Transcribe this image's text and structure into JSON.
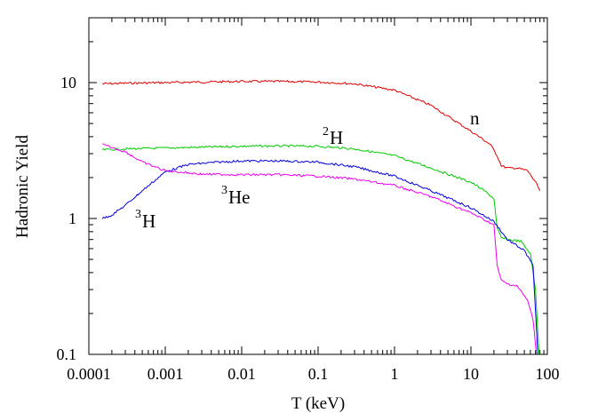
{
  "chart_data": {
    "type": "line",
    "title": "",
    "xlabel": "T (keV)",
    "ylabel": "Hadronic Yield",
    "x_scale": "log",
    "y_scale": "log",
    "xlim": [
      0.0001,
      100
    ],
    "ylim": [
      0.1,
      30
    ],
    "grid": false,
    "legend": "none",
    "x_tick_labels": [
      "0.0001",
      "0.001",
      "0.01",
      "0.1",
      "1",
      "10",
      "100"
    ],
    "y_tick_labels": [
      "0.1",
      "1",
      "10"
    ],
    "series": [
      {
        "name": "n",
        "label_main": "n",
        "label_sup": "",
        "color": "#e00000",
        "points": [
          [
            0.00015,
            9.8
          ],
          [
            0.0003,
            9.9
          ],
          [
            0.001,
            10.0
          ],
          [
            0.003,
            10.1
          ],
          [
            0.01,
            10.2
          ],
          [
            0.03,
            10.2
          ],
          [
            0.1,
            10.1
          ],
          [
            0.3,
            9.8
          ],
          [
            1,
            8.8
          ],
          [
            3,
            6.8
          ],
          [
            7,
            5.0
          ],
          [
            12,
            4.1
          ],
          [
            18,
            3.5
          ],
          [
            22,
            2.9
          ],
          [
            25,
            2.45
          ],
          [
            30,
            2.35
          ],
          [
            40,
            2.35
          ],
          [
            55,
            2.25
          ],
          [
            70,
            1.85
          ],
          [
            80,
            1.6
          ]
        ]
      },
      {
        "name": "2H",
        "label_main": "H",
        "label_sup": "2",
        "color": "#00cc00",
        "points": [
          [
            0.00015,
            3.2
          ],
          [
            0.0003,
            3.25
          ],
          [
            0.001,
            3.3
          ],
          [
            0.003,
            3.35
          ],
          [
            0.01,
            3.4
          ],
          [
            0.03,
            3.42
          ],
          [
            0.1,
            3.4
          ],
          [
            0.3,
            3.25
          ],
          [
            1,
            2.9
          ],
          [
            3,
            2.35
          ],
          [
            10,
            1.85
          ],
          [
            15,
            1.6
          ],
          [
            20,
            1.4
          ],
          [
            22,
            0.85
          ],
          [
            25,
            0.72
          ],
          [
            30,
            0.7
          ],
          [
            45,
            0.68
          ],
          [
            60,
            0.55
          ],
          [
            70,
            0.3
          ],
          [
            78,
            0.1
          ]
        ]
      },
      {
        "name": "3H",
        "label_main": "H",
        "label_sup": "3",
        "color": "#0000dd",
        "points": [
          [
            0.00015,
            1.0
          ],
          [
            0.0002,
            1.06
          ],
          [
            0.0003,
            1.25
          ],
          [
            0.0005,
            1.6
          ],
          [
            0.001,
            2.2
          ],
          [
            0.002,
            2.5
          ],
          [
            0.005,
            2.6
          ],
          [
            0.01,
            2.65
          ],
          [
            0.03,
            2.65
          ],
          [
            0.1,
            2.6
          ],
          [
            0.3,
            2.4
          ],
          [
            1,
            2.05
          ],
          [
            3,
            1.6
          ],
          [
            10,
            1.2
          ],
          [
            20,
            0.95
          ],
          [
            30,
            0.7
          ],
          [
            50,
            0.58
          ],
          [
            65,
            0.45
          ],
          [
            75,
            0.1
          ]
        ]
      },
      {
        "name": "3He",
        "label_main": "He",
        "label_sup": "3",
        "color": "#ee00ee",
        "points": [
          [
            0.00015,
            3.5
          ],
          [
            0.0003,
            3.1
          ],
          [
            0.0005,
            2.6
          ],
          [
            0.001,
            2.25
          ],
          [
            0.003,
            2.12
          ],
          [
            0.01,
            2.1
          ],
          [
            0.03,
            2.1
          ],
          [
            0.1,
            2.05
          ],
          [
            0.3,
            1.95
          ],
          [
            1,
            1.75
          ],
          [
            3,
            1.45
          ],
          [
            10,
            1.1
          ],
          [
            20,
            0.9
          ],
          [
            22,
            0.45
          ],
          [
            25,
            0.35
          ],
          [
            30,
            0.33
          ],
          [
            40,
            0.32
          ],
          [
            55,
            0.25
          ],
          [
            65,
            0.18
          ],
          [
            72,
            0.1
          ]
        ]
      }
    ]
  }
}
